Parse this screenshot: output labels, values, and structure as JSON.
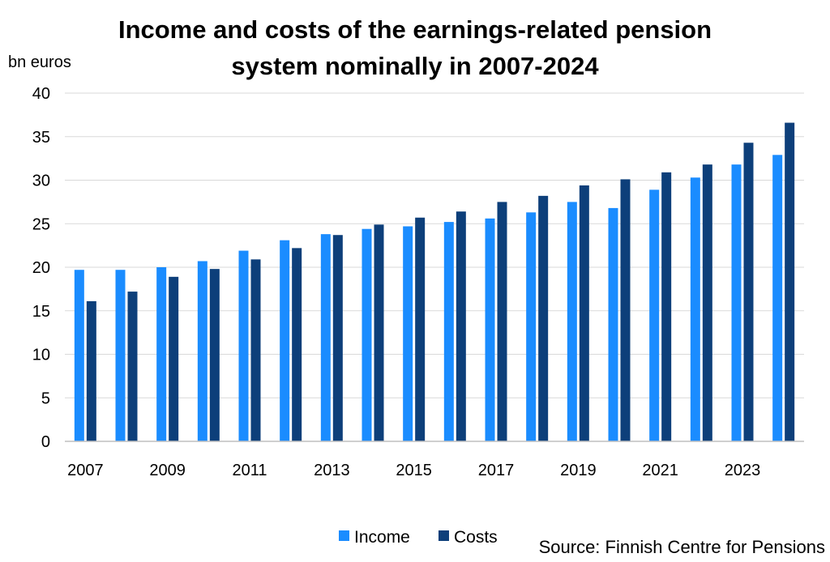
{
  "chart_data": {
    "type": "bar",
    "title_line1": "Income and costs of the earnings-related pension",
    "title_line2": "system nominally in 2007-2024",
    "ylabel": "bn euros",
    "source": "Source: Finnish Centre for Pensions",
    "ylim": [
      0,
      40
    ],
    "yticks": [
      0,
      5,
      10,
      15,
      20,
      25,
      30,
      35,
      40
    ],
    "categories": [
      "2007",
      "2008",
      "2009",
      "2010",
      "2011",
      "2012",
      "2013",
      "2014",
      "2015",
      "2016",
      "2017",
      "2018",
      "2019",
      "2020",
      "2021",
      "2022",
      "2023",
      "2024"
    ],
    "xtick_labels": [
      "2007",
      "2009",
      "2011",
      "2013",
      "2015",
      "2017",
      "2019",
      "2021",
      "2023"
    ],
    "grid": true,
    "legend_position": "bottom",
    "series": [
      {
        "name": "Income",
        "color": "#1a8cff",
        "values": [
          19.7,
          19.7,
          20.0,
          20.7,
          21.9,
          23.1,
          23.8,
          24.4,
          24.7,
          25.2,
          25.6,
          26.3,
          27.5,
          26.8,
          28.9,
          30.3,
          31.8,
          32.9
        ]
      },
      {
        "name": "Costs",
        "color": "#0d3f7a",
        "values": [
          16.1,
          17.2,
          18.9,
          19.8,
          20.9,
          22.2,
          23.7,
          24.9,
          25.7,
          26.4,
          27.5,
          28.2,
          29.4,
          30.1,
          30.9,
          31.8,
          34.3,
          36.6
        ]
      }
    ]
  }
}
